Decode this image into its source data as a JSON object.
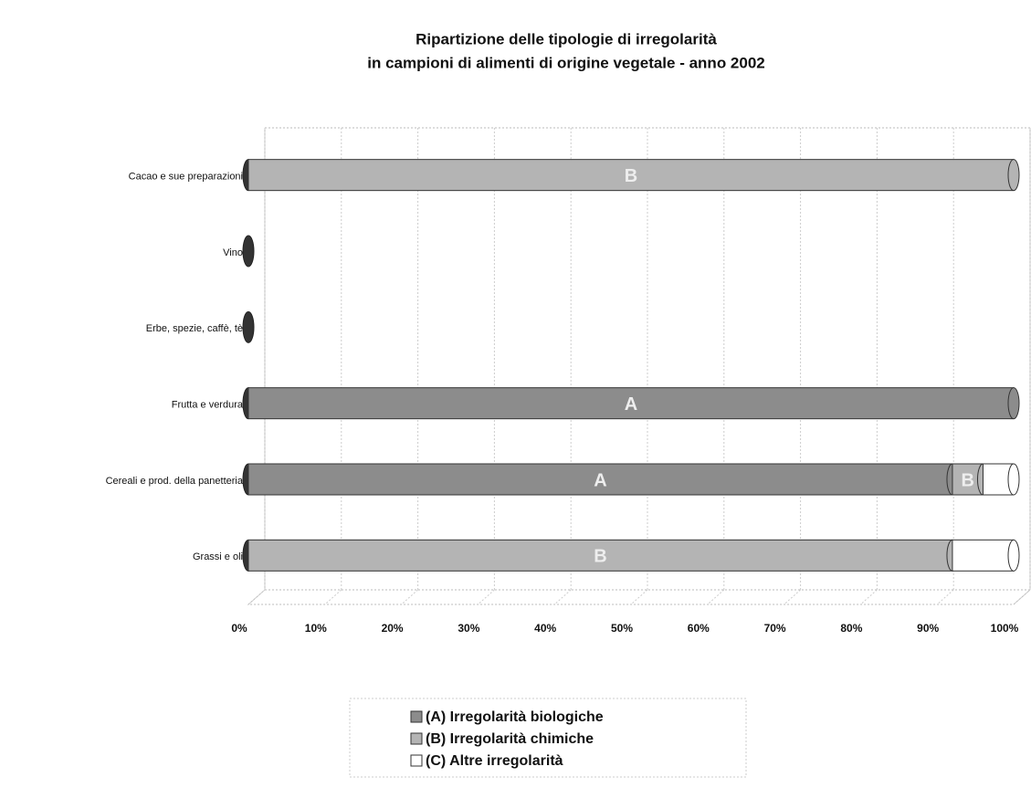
{
  "chart_data": {
    "type": "stacked_barh_100",
    "title": [
      "Ripartizione delle tipologie di irregolarità",
      "in campioni di alimenti di origine vegetale - anno 2002"
    ],
    "categories": [
      "Cacao e sue preparazioni",
      "Vino",
      "Erbe, spezie, caffè, tè",
      "Frutta e verdura",
      "Cereali e prod. della panetteria",
      "Grassi e oli"
    ],
    "series": [
      {
        "name": "(A) Irregolarità biologiche",
        "short": "A",
        "color": "#8c8c8c",
        "values": [
          0,
          0,
          0,
          100,
          92,
          0
        ]
      },
      {
        "name": "(B) Irregolarità chimiche",
        "short": "B",
        "color": "#b4b4b4",
        "values": [
          100,
          0,
          0,
          0,
          4,
          92
        ]
      },
      {
        "name": "(C) Altre irregolarità",
        "short": "C",
        "color": "#ffffff",
        "values": [
          0,
          0,
          0,
          0,
          4,
          8
        ]
      }
    ],
    "xlim": [
      0,
      100
    ],
    "xticks": [
      {
        "value": 0,
        "label": "0%"
      },
      {
        "value": 10,
        "label": "10%"
      },
      {
        "value": 20,
        "label": "20%"
      },
      {
        "value": 30,
        "label": "30%"
      },
      {
        "value": 40,
        "label": "40%"
      },
      {
        "value": 50,
        "label": "50%"
      },
      {
        "value": 60,
        "label": "60%"
      },
      {
        "value": 70,
        "label": "70%"
      },
      {
        "value": 80,
        "label": "80%"
      },
      {
        "value": 90,
        "label": "90%"
      },
      {
        "value": 100,
        "label": "100%"
      }
    ],
    "grid": true
  }
}
